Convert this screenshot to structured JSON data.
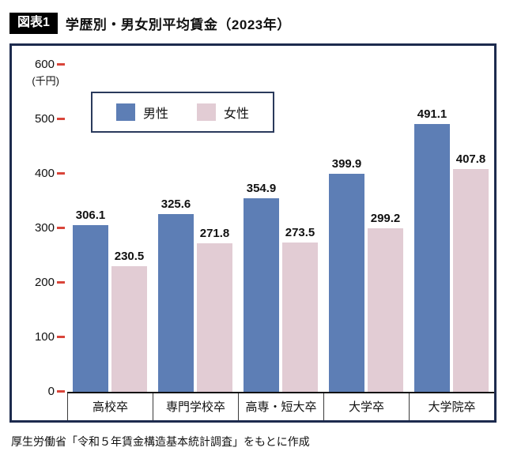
{
  "figure_label": "図表1",
  "title": "学歴別・男女別平均賃金（2023年）",
  "source_note": "厚生労働省「令和５年賃金構造基本統計調査」をもとに作成",
  "colors": {
    "male_bar": "#5d7eb5",
    "female_bar": "#e2ccd4",
    "frame_border": "#1d2b4e",
    "tick_mark": "#d9453a"
  },
  "chart_data": {
    "type": "bar",
    "title": "学歴別・男女別平均賃金（2023年）",
    "categories": [
      "高校卒",
      "専門学校卒",
      "高専・短大卒",
      "大学卒",
      "大学院卒"
    ],
    "series": [
      {
        "name": "男性",
        "color": "#5d7eb5",
        "values": [
          306.1,
          325.6,
          354.9,
          399.9,
          491.1
        ]
      },
      {
        "name": "女性",
        "color": "#e2ccd4",
        "values": [
          230.5,
          271.8,
          273.5,
          299.2,
          407.8
        ]
      }
    ],
    "ylabel_unit": "(千円)",
    "ylim": [
      0,
      600
    ],
    "ytick_interval": 100,
    "yticks": [
      600,
      500,
      400,
      300,
      200,
      100,
      0
    ],
    "legend_position": "top-left",
    "grid": false
  }
}
